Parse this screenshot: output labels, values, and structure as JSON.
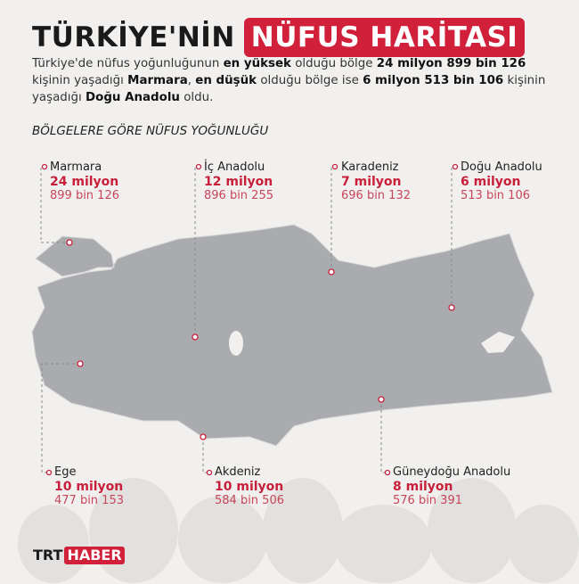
{
  "title": {
    "part1": "TÜRKİYE'NİN",
    "part2": "NÜFUS HARİTASI"
  },
  "intro": {
    "t1": "Türkiye'de nüfus yoğunluğunun ",
    "b1": "en yüksek",
    "t2": " olduğu bölge ",
    "b2": "24 milyon 899 bin 126",
    "t3": " kişinin yaşadığı ",
    "b3": "Marmara",
    "t4": ", ",
    "b4": "en düşük",
    "t5": " olduğu bölge ise ",
    "b5": "6 milyon 513 bin 106",
    "t6": " kişinin yaşadığı ",
    "b6": "Doğu Anadolu",
    "t7": " oldu."
  },
  "subtitle": "BÖLGELERE GÖRE NÜFUS YOĞUNLUĞU",
  "regions": [
    {
      "name": "Marmara",
      "millions": "24 milyon",
      "rest": "899 bin 126"
    },
    {
      "name": "İç Anadolu",
      "millions": "12 milyon",
      "rest": "896 bin 255"
    },
    {
      "name": "Karadeniz",
      "millions": "7 milyon",
      "rest": "696 bin 132"
    },
    {
      "name": "Doğu Anadolu",
      "millions": "6 milyon",
      "rest": "513 bin 106"
    },
    {
      "name": "Ege",
      "millions": "10 milyon",
      "rest": "477 bin 153"
    },
    {
      "name": "Akdeniz",
      "millions": "10 milyon",
      "rest": "584 bin 506"
    },
    {
      "name": "Güneydoğu Anadolu",
      "millions": "8 milyon",
      "rest": "576 bin 391"
    }
  ],
  "logo": {
    "trt": "TRT",
    "haber": "HABER"
  },
  "colors": {
    "accent": "#d0203a",
    "map": "#a9abae",
    "background": "#f1f0ee"
  }
}
